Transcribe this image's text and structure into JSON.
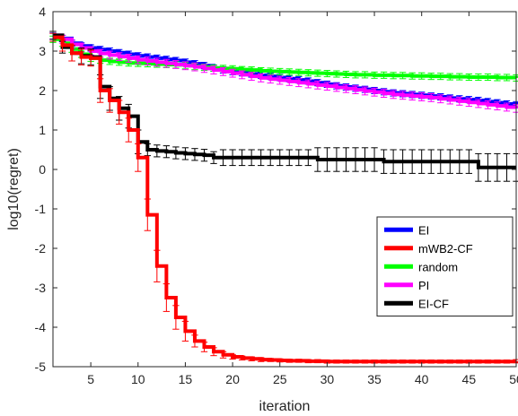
{
  "chart_data": {
    "type": "line",
    "xlabel": "iteration",
    "ylabel": "log10(regret)",
    "xlim": [
      1,
      50
    ],
    "ylim": [
      -5,
      4
    ],
    "xticks": [
      5,
      10,
      15,
      20,
      25,
      30,
      35,
      40,
      45,
      50
    ],
    "yticks": [
      -5,
      -4,
      -3,
      -2,
      -1,
      0,
      1,
      2,
      3,
      4
    ],
    "grid": false,
    "legend_position": "bottom-right",
    "series": [
      {
        "name": "EI",
        "color": "#0000ff",
        "x": [
          1,
          2,
          3,
          4,
          5,
          6,
          7,
          8,
          9,
          10,
          11,
          12,
          13,
          14,
          15,
          16,
          17,
          18,
          19,
          20,
          21,
          22,
          23,
          24,
          25,
          26,
          27,
          28,
          29,
          30,
          31,
          32,
          33,
          34,
          35,
          36,
          37,
          38,
          39,
          40,
          41,
          42,
          43,
          44,
          45,
          46,
          47,
          48,
          49,
          50
        ],
        "y": [
          3.38,
          3.32,
          3.2,
          3.13,
          3.08,
          3.04,
          3.0,
          2.96,
          2.92,
          2.88,
          2.85,
          2.82,
          2.79,
          2.76,
          2.72,
          2.68,
          2.63,
          2.57,
          2.52,
          2.48,
          2.45,
          2.42,
          2.39,
          2.36,
          2.33,
          2.3,
          2.27,
          2.24,
          2.2,
          2.16,
          2.12,
          2.09,
          2.06,
          2.03,
          2.0,
          1.97,
          1.94,
          1.92,
          1.9,
          1.88,
          1.86,
          1.84,
          1.81,
          1.79,
          1.77,
          1.75,
          1.72,
          1.69,
          1.66,
          1.64
        ],
        "err": 0.08
      },
      {
        "name": "random",
        "color": "#00ff00",
        "x": [
          1,
          2,
          3,
          4,
          5,
          6,
          7,
          8,
          9,
          10,
          11,
          12,
          13,
          14,
          15,
          16,
          17,
          18,
          19,
          20,
          21,
          22,
          23,
          24,
          25,
          26,
          27,
          28,
          29,
          30,
          31,
          32,
          33,
          34,
          35,
          36,
          37,
          38,
          39,
          40,
          41,
          42,
          43,
          44,
          45,
          46,
          47,
          48,
          49,
          50
        ],
        "y": [
          3.3,
          3.2,
          3.05,
          2.92,
          2.82,
          2.77,
          2.74,
          2.72,
          2.7,
          2.69,
          2.68,
          2.67,
          2.66,
          2.65,
          2.63,
          2.61,
          2.59,
          2.57,
          2.56,
          2.55,
          2.53,
          2.52,
          2.5,
          2.49,
          2.48,
          2.47,
          2.46,
          2.45,
          2.44,
          2.43,
          2.42,
          2.41,
          2.4,
          2.4,
          2.39,
          2.39,
          2.38,
          2.38,
          2.37,
          2.37,
          2.36,
          2.36,
          2.35,
          2.35,
          2.34,
          2.34,
          2.34,
          2.33,
          2.33,
          2.32
        ],
        "err": 0.08
      },
      {
        "name": "PI",
        "color": "#ff00ff",
        "x": [
          1,
          2,
          3,
          4,
          5,
          6,
          7,
          8,
          9,
          10,
          11,
          12,
          13,
          14,
          15,
          16,
          17,
          18,
          19,
          20,
          21,
          22,
          23,
          24,
          25,
          26,
          27,
          28,
          29,
          30,
          31,
          32,
          33,
          34,
          35,
          36,
          37,
          38,
          39,
          40,
          41,
          42,
          43,
          44,
          45,
          46,
          47,
          48,
          49,
          50
        ],
        "y": [
          3.4,
          3.3,
          3.17,
          3.08,
          3.0,
          2.94,
          2.9,
          2.86,
          2.82,
          2.78,
          2.75,
          2.72,
          2.69,
          2.66,
          2.63,
          2.6,
          2.56,
          2.52,
          2.48,
          2.44,
          2.4,
          2.36,
          2.32,
          2.29,
          2.26,
          2.23,
          2.2,
          2.17,
          2.14,
          2.11,
          2.08,
          2.05,
          2.02,
          1.99,
          1.96,
          1.93,
          1.9,
          1.88,
          1.86,
          1.84,
          1.82,
          1.79,
          1.76,
          1.73,
          1.7,
          1.67,
          1.64,
          1.61,
          1.58,
          1.55
        ],
        "err": 0.1
      },
      {
        "name": "EI-CF",
        "color": "#000000",
        "x": [
          1,
          2,
          3,
          4,
          5,
          6,
          7,
          8,
          9,
          10,
          11,
          12,
          13,
          14,
          15,
          16,
          17,
          18,
          19,
          20,
          21,
          22,
          23,
          24,
          25,
          26,
          27,
          28,
          29,
          30,
          31,
          32,
          33,
          34,
          35,
          36,
          37,
          38,
          39,
          40,
          41,
          42,
          43,
          44,
          45,
          46,
          47,
          48,
          49,
          50
        ],
        "y": [
          3.4,
          3.1,
          2.95,
          2.88,
          2.85,
          2.1,
          1.8,
          1.55,
          1.35,
          0.7,
          0.5,
          0.47,
          0.45,
          0.42,
          0.4,
          0.38,
          0.36,
          0.3,
          0.3,
          0.3,
          0.3,
          0.3,
          0.3,
          0.3,
          0.3,
          0.3,
          0.3,
          0.3,
          0.25,
          0.25,
          0.25,
          0.25,
          0.25,
          0.25,
          0.25,
          0.2,
          0.2,
          0.2,
          0.2,
          0.2,
          0.2,
          0.2,
          0.2,
          0.2,
          0.2,
          0.05,
          0.05,
          0.05,
          0.05,
          0.05
        ],
        "err": [
          0.1,
          0.15,
          0.2,
          0.2,
          0.2,
          0.3,
          0.3,
          0.3,
          0.3,
          0.3,
          0.15,
          0.15,
          0.15,
          0.15,
          0.15,
          0.15,
          0.15,
          0.15,
          0.2,
          0.2,
          0.2,
          0.2,
          0.2,
          0.2,
          0.2,
          0.2,
          0.2,
          0.2,
          0.3,
          0.3,
          0.3,
          0.3,
          0.3,
          0.3,
          0.3,
          0.3,
          0.3,
          0.3,
          0.3,
          0.3,
          0.3,
          0.3,
          0.3,
          0.3,
          0.3,
          0.35,
          0.35,
          0.35,
          0.35,
          0.35
        ]
      },
      {
        "name": "mWB2-CF",
        "color": "#ff0000",
        "x": [
          1,
          2,
          3,
          4,
          5,
          6,
          7,
          8,
          9,
          10,
          11,
          12,
          13,
          14,
          15,
          16,
          17,
          18,
          19,
          20,
          21,
          22,
          23,
          24,
          25,
          26,
          27,
          28,
          29,
          30,
          31,
          32,
          33,
          34,
          35,
          36,
          37,
          38,
          39,
          40,
          41,
          42,
          43,
          44,
          45,
          46,
          47,
          48,
          49,
          50
        ],
        "y": [
          3.35,
          3.15,
          2.95,
          2.85,
          2.82,
          2.0,
          1.75,
          1.45,
          1.0,
          0.3,
          -1.15,
          -2.45,
          -3.25,
          -3.75,
          -4.1,
          -4.35,
          -4.5,
          -4.62,
          -4.7,
          -4.75,
          -4.78,
          -4.8,
          -4.82,
          -4.83,
          -4.84,
          -4.85,
          -4.85,
          -4.86,
          -4.86,
          -4.87,
          -4.87,
          -4.87,
          -4.87,
          -4.87,
          -4.87,
          -4.87,
          -4.87,
          -4.87,
          -4.87,
          -4.87,
          -4.87,
          -4.87,
          -4.87,
          -4.87,
          -4.87,
          -4.87,
          -4.87,
          -4.87,
          -4.87,
          -4.86
        ],
        "err": [
          0.1,
          0.15,
          0.2,
          0.2,
          0.2,
          0.3,
          0.3,
          0.3,
          0.3,
          0.35,
          0.4,
          0.4,
          0.35,
          0.3,
          0.25,
          0.15,
          0.12,
          0.1,
          0.08,
          0.06,
          0.05,
          0.05,
          0.05,
          0.04,
          0.04,
          0.04,
          0.04,
          0.04,
          0.04,
          0.04,
          0.04,
          0.04,
          0.04,
          0.04,
          0.04,
          0.04,
          0.04,
          0.04,
          0.04,
          0.04,
          0.04,
          0.04,
          0.04,
          0.04,
          0.04,
          0.04,
          0.04,
          0.04,
          0.04,
          0.04
        ]
      }
    ],
    "legend": [
      {
        "name": "EI",
        "color": "#0000ff"
      },
      {
        "name": "mWB2-CF",
        "color": "#ff0000"
      },
      {
        "name": "random",
        "color": "#00ff00"
      },
      {
        "name": "PI",
        "color": "#ff00ff"
      },
      {
        "name": "EI-CF",
        "color": "#000000"
      }
    ]
  }
}
